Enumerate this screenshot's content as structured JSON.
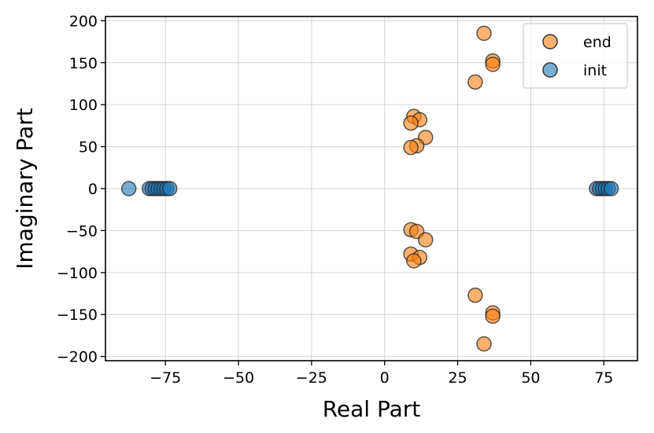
{
  "chart_data": {
    "type": "scatter",
    "title": "",
    "xlabel": "Real Part",
    "ylabel": "Imaginary Part",
    "xlim": [
      -95.5,
      86.5
    ],
    "ylim": [
      -205,
      205
    ],
    "xticks": [
      -75,
      -50,
      -25,
      0,
      25,
      50,
      75
    ],
    "xtick_labels": [
      "−75",
      "−50",
      "−25",
      "0",
      "25",
      "50",
      "75"
    ],
    "yticks": [
      -200,
      -150,
      -100,
      -50,
      0,
      50,
      100,
      150,
      200
    ],
    "ytick_labels": [
      "−200",
      "−150",
      "−100",
      "−50",
      "0",
      "50",
      "100",
      "150",
      "200"
    ],
    "grid": true,
    "legend_position": "top-right",
    "series": [
      {
        "name": "end",
        "color": "#ff7f0e",
        "points": [
          [
            34,
            185
          ],
          [
            37,
            152
          ],
          [
            37,
            148
          ],
          [
            31,
            127
          ],
          [
            10,
            86
          ],
          [
            12,
            82
          ],
          [
            9,
            78
          ],
          [
            14,
            61
          ],
          [
            11,
            51
          ],
          [
            9,
            49
          ],
          [
            9,
            -49
          ],
          [
            11,
            -51
          ],
          [
            14,
            -61
          ],
          [
            9,
            -78
          ],
          [
            12,
            -82
          ],
          [
            10,
            -86
          ],
          [
            31,
            -127
          ],
          [
            37,
            -148
          ],
          [
            37,
            -152
          ],
          [
            34,
            -185
          ]
        ]
      },
      {
        "name": "init",
        "color": "#1f77b4",
        "points": [
          [
            -87.5,
            0
          ],
          [
            -80.5,
            0
          ],
          [
            -79.5,
            0
          ],
          [
            -78.5,
            0
          ],
          [
            -77.5,
            0
          ],
          [
            -76.5,
            0
          ],
          [
            -75.5,
            0
          ],
          [
            -74.5,
            0
          ],
          [
            -73.5,
            0
          ],
          [
            72.5,
            0
          ],
          [
            73.5,
            0
          ],
          [
            74.5,
            0
          ],
          [
            75.5,
            0
          ],
          [
            76.5,
            0
          ],
          [
            77.5,
            0
          ]
        ]
      }
    ]
  }
}
